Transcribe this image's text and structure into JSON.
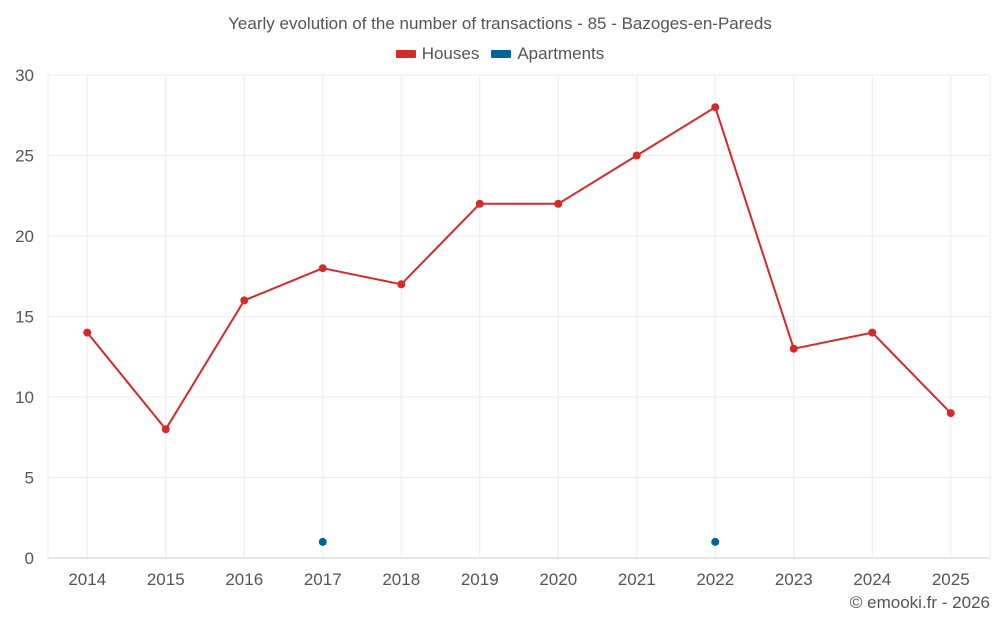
{
  "chart_data": {
    "type": "line",
    "title": "Yearly evolution of the number of transactions - 85 - Bazoges-en-Pareds",
    "categories": [
      "2014",
      "2015",
      "2016",
      "2017",
      "2018",
      "2019",
      "2020",
      "2021",
      "2022",
      "2023",
      "2024",
      "2025"
    ],
    "ylim": [
      0,
      30
    ],
    "yticks": [
      0,
      5,
      10,
      15,
      20,
      25,
      30
    ],
    "grid": true,
    "legend_position": "top-center",
    "series": [
      {
        "name": "Houses",
        "color": "#d32a2a",
        "values": [
          14,
          8,
          16,
          18,
          17,
          22,
          22,
          25,
          28,
          13,
          14,
          9
        ]
      },
      {
        "name": "Apartments",
        "color": "#006699",
        "values": [
          null,
          null,
          null,
          1,
          null,
          null,
          null,
          null,
          1,
          null,
          null,
          null
        ]
      }
    ]
  },
  "footer": {
    "credit": "© emooki.fr - 2026"
  }
}
